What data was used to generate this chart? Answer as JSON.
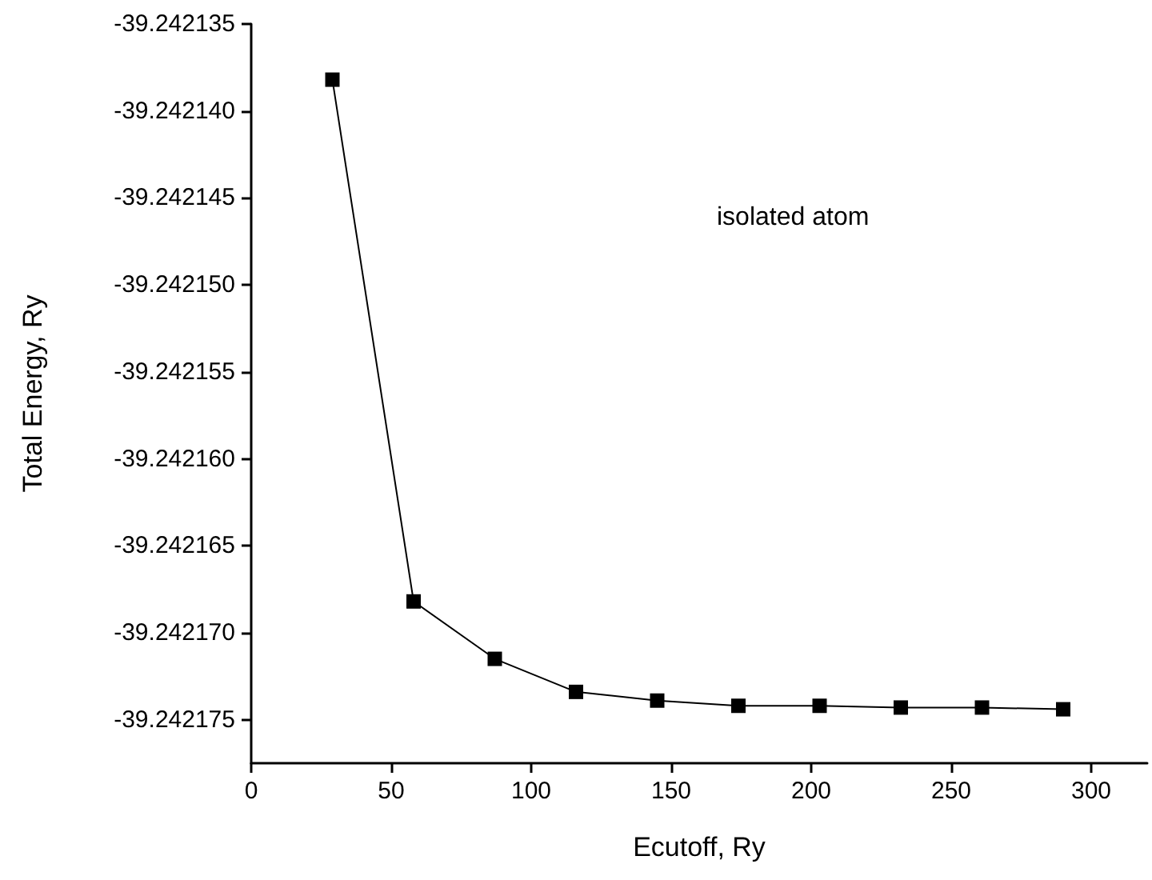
{
  "chart_data": {
    "type": "line",
    "xlabel": "Ecutoff, Ry",
    "ylabel": "Total Energy, Ry",
    "annotations": [
      "isolated atom"
    ],
    "x": [
      29,
      58,
      87,
      116,
      145,
      174,
      203,
      232,
      261,
      290
    ],
    "series": [
      {
        "color": "#000000",
        "values": [
          -39.2421382,
          -39.2421682,
          -39.2421715,
          -39.2421734,
          -39.2421739,
          -39.2421742,
          -39.2421742,
          -39.2421743,
          -39.2421743,
          -39.2421744
        ]
      }
    ],
    "xlim": [
      0,
      320
    ],
    "xticks": [
      0,
      50,
      100,
      150,
      200,
      250,
      300
    ],
    "ylim": [
      -39.2421775,
      -39.242135
    ],
    "yticks": [
      -39.242175,
      {
        "value": -39.24217,
        "label": "-39.242170"
      },
      -39.242165,
      {
        "value": -39.24216,
        "label": "-39.242160"
      },
      -39.242155,
      {
        "value": -39.24215,
        "label": "-39.242150"
      },
      -39.242145,
      {
        "value": -39.24214,
        "label": "-39.242140"
      },
      -39.242135
    ],
    "grid": false,
    "marker": "square",
    "line_style": "solid"
  }
}
